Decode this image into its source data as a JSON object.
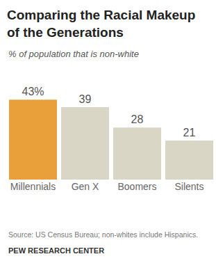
{
  "chart_data": {
    "type": "bar",
    "title": "Comparing the Racial Makeup of the Generations",
    "subtitle": "% of population that is non-white",
    "categories": [
      "Millennials",
      "Gen X",
      "Boomers",
      "Silents"
    ],
    "values": [
      43,
      39,
      28,
      21
    ],
    "value_labels": [
      "43%",
      "39",
      "28",
      "21"
    ],
    "colors": [
      "#e9a03b",
      "#dad6c6",
      "#dad6c6",
      "#dad6c6"
    ],
    "ylim": [
      0,
      48
    ],
    "data_labels": true,
    "tick_labels": "x",
    "grid": false,
    "annotations": [
      "Source: US Census Bureau; non-whites include Hispanics.",
      "PEW RESEARCH CENTER"
    ]
  }
}
